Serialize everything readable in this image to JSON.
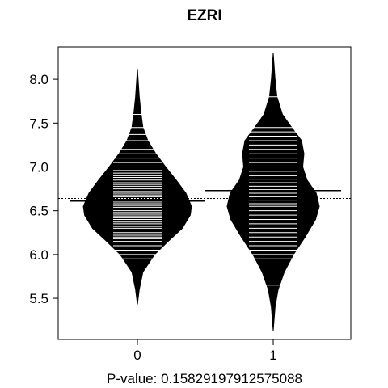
{
  "chart_data": {
    "type": "beanplot",
    "title": "EZRI",
    "xlabel": "P-value: 0.15829197912575088",
    "ylabel": "",
    "categories": [
      "0",
      "1"
    ],
    "ylim": [
      5.03,
      8.37
    ],
    "yticks": [
      5.5,
      6.0,
      6.5,
      7.0,
      7.5,
      8.0
    ],
    "ytick_labels": [
      "5.5",
      "6.0",
      "6.5",
      "7.0",
      "7.5",
      "8.0"
    ],
    "overall_mean": 6.64,
    "colors": {
      "bean": "#000000",
      "lines": "#ffffff",
      "axis": "#000000",
      "background": "#ffffff"
    },
    "series": [
      {
        "category": "0",
        "mean": 6.61,
        "min": 5.43,
        "max": 8.12,
        "density": [
          [
            5.43,
            0.0
          ],
          [
            5.6,
            0.03
          ],
          [
            5.8,
            0.09
          ],
          [
            6.0,
            0.28
          ],
          [
            6.15,
            0.5
          ],
          [
            6.3,
            0.73
          ],
          [
            6.45,
            0.86
          ],
          [
            6.55,
            0.88
          ],
          [
            6.7,
            0.79
          ],
          [
            6.85,
            0.63
          ],
          [
            7.0,
            0.46
          ],
          [
            7.15,
            0.3
          ],
          [
            7.3,
            0.17
          ],
          [
            7.45,
            0.09
          ],
          [
            7.6,
            0.06
          ],
          [
            7.8,
            0.03
          ],
          [
            8.12,
            0.0
          ]
        ],
        "observations": [
          5.95,
          6.0,
          6.05,
          6.1,
          6.15,
          6.18,
          6.2,
          6.22,
          6.25,
          6.28,
          6.3,
          6.32,
          6.35,
          6.37,
          6.4,
          6.42,
          6.44,
          6.46,
          6.48,
          6.5,
          6.52,
          6.54,
          6.56,
          6.58,
          6.6,
          6.62,
          6.64,
          6.66,
          6.68,
          6.7,
          6.72,
          6.75,
          6.78,
          6.8,
          6.82,
          6.85,
          6.88,
          6.9,
          6.93,
          6.96,
          7.0,
          7.05,
          7.1,
          7.15,
          7.2,
          7.3,
          7.37,
          7.45,
          7.6
        ]
      },
      {
        "category": "1",
        "mean": 6.73,
        "min": 5.13,
        "max": 8.3,
        "density": [
          [
            5.13,
            0.0
          ],
          [
            5.4,
            0.03
          ],
          [
            5.6,
            0.08
          ],
          [
            5.8,
            0.18
          ],
          [
            6.0,
            0.33
          ],
          [
            6.2,
            0.52
          ],
          [
            6.4,
            0.69
          ],
          [
            6.55,
            0.75
          ],
          [
            6.7,
            0.7
          ],
          [
            6.85,
            0.55
          ],
          [
            7.0,
            0.48
          ],
          [
            7.15,
            0.5
          ],
          [
            7.3,
            0.46
          ],
          [
            7.45,
            0.3
          ],
          [
            7.6,
            0.15
          ],
          [
            7.8,
            0.06
          ],
          [
            8.0,
            0.03
          ],
          [
            8.3,
            0.0
          ]
        ],
        "observations": [
          5.65,
          5.8,
          5.95,
          6.0,
          6.05,
          6.1,
          6.15,
          6.2,
          6.25,
          6.3,
          6.35,
          6.4,
          6.45,
          6.5,
          6.55,
          6.58,
          6.62,
          6.66,
          6.7,
          6.74,
          6.78,
          6.82,
          6.86,
          6.9,
          6.95,
          7.0,
          7.05,
          7.1,
          7.15,
          7.2,
          7.25,
          7.3,
          7.35,
          7.4,
          7.45,
          7.8
        ]
      }
    ]
  }
}
